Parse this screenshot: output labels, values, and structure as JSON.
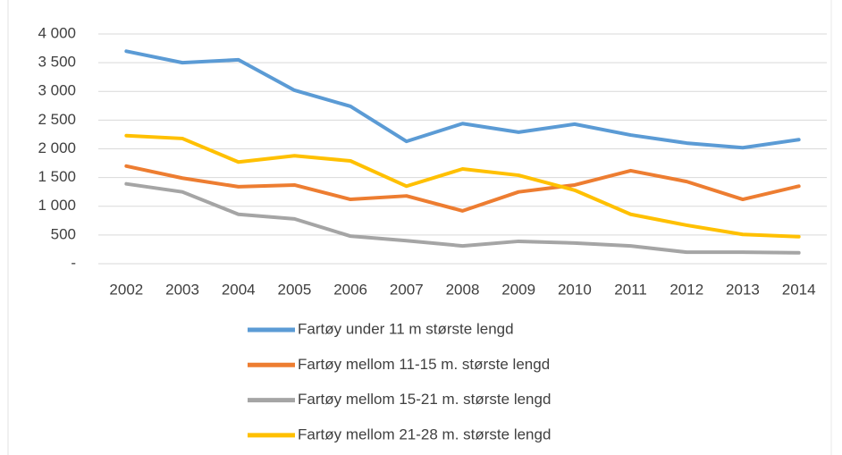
{
  "chart_data": {
    "type": "line",
    "categories": [
      "2002",
      "2003",
      "2004",
      "2005",
      "2006",
      "2007",
      "2008",
      "2009",
      "2010",
      "2011",
      "2012",
      "2013",
      "2014"
    ],
    "series": [
      {
        "name": "Fartøy under 11 m største lengd",
        "color": "#5b9bd5",
        "values": [
          3700,
          3500,
          3550,
          3020,
          2740,
          2130,
          2440,
          2290,
          2430,
          2240,
          2100,
          2020,
          2160
        ]
      },
      {
        "name": "Fartøy mellom 11-15 m. største lengd",
        "color": "#ed7d31",
        "values": [
          1700,
          1490,
          1340,
          1370,
          1120,
          1180,
          920,
          1250,
          1370,
          1620,
          1430,
          1120,
          1350
        ]
      },
      {
        "name": "Fartøy mellom 15-21 m. største lengd",
        "color": "#a5a5a5",
        "values": [
          1390,
          1250,
          860,
          780,
          480,
          400,
          310,
          390,
          360,
          310,
          200,
          200,
          190
        ]
      },
      {
        "name": "Fartøy mellom 21-28 m. største lengd",
        "color": "#ffc000",
        "values": [
          2230,
          2180,
          1770,
          1880,
          1790,
          1350,
          1650,
          1540,
          1280,
          860,
          670,
          510,
          470
        ]
      }
    ],
    "ylim": [
      0,
      4000
    ],
    "yticks": [
      {
        "value": 0,
        "label": "-"
      },
      500,
      {
        "value": 1000,
        "label": "1 000"
      },
      {
        "value": 1500,
        "label": "1 500"
      },
      {
        "value": 2000,
        "label": "2 000"
      },
      {
        "value": 2500,
        "label": "2 500"
      },
      {
        "value": 3000,
        "label": "3 000"
      },
      {
        "value": 3500,
        "label": "3 500"
      },
      {
        "value": 4000,
        "label": "4 000"
      }
    ],
    "grid": true
  }
}
